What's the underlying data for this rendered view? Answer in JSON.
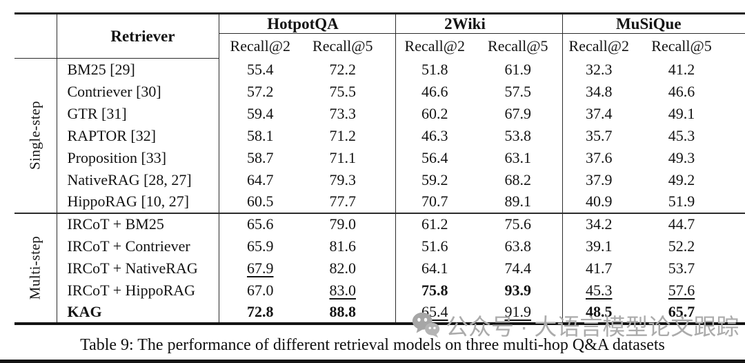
{
  "table": {
    "caption": "Table 9: The performance of different retrieval models on three multi-hop Q&A datasets",
    "header": {
      "retriever": "Retriever",
      "groups": [
        {
          "label": "HotpotQA",
          "sub": [
            "Recall@2",
            "Recall@5"
          ]
        },
        {
          "label": "2Wiki",
          "sub": [
            "Recall@2",
            "Recall@5"
          ]
        },
        {
          "label": "MuSiQue",
          "sub": [
            "Recall@2",
            "Recall@5"
          ]
        }
      ]
    },
    "sections": [
      {
        "label": "Single-step",
        "rows": [
          {
            "retriever": "BM25 [29]",
            "bold": false,
            "values": [
              {
                "v": "55.4",
                "s": "n"
              },
              {
                "v": "72.2",
                "s": "n"
              },
              {
                "v": "51.8",
                "s": "n"
              },
              {
                "v": "61.9",
                "s": "n"
              },
              {
                "v": "32.3",
                "s": "n"
              },
              {
                "v": "41.2",
                "s": "n"
              }
            ]
          },
          {
            "retriever": "Contriever [30]",
            "bold": false,
            "values": [
              {
                "v": "57.2",
                "s": "n"
              },
              {
                "v": "75.5",
                "s": "n"
              },
              {
                "v": "46.6",
                "s": "n"
              },
              {
                "v": "57.5",
                "s": "n"
              },
              {
                "v": "34.8",
                "s": "n"
              },
              {
                "v": "46.6",
                "s": "n"
              }
            ]
          },
          {
            "retriever": "GTR [31]",
            "bold": false,
            "values": [
              {
                "v": "59.4",
                "s": "n"
              },
              {
                "v": "73.3",
                "s": "n"
              },
              {
                "v": "60.2",
                "s": "n"
              },
              {
                "v": "67.9",
                "s": "n"
              },
              {
                "v": "37.4",
                "s": "n"
              },
              {
                "v": "49.1",
                "s": "n"
              }
            ]
          },
          {
            "retriever": "RAPTOR [32]",
            "bold": false,
            "values": [
              {
                "v": "58.1",
                "s": "n"
              },
              {
                "v": "71.2",
                "s": "n"
              },
              {
                "v": "46.3",
                "s": "n"
              },
              {
                "v": "53.8",
                "s": "n"
              },
              {
                "v": "35.7",
                "s": "n"
              },
              {
                "v": "45.3",
                "s": "n"
              }
            ]
          },
          {
            "retriever": "Proposition [33]",
            "bold": false,
            "values": [
              {
                "v": "58.7",
                "s": "n"
              },
              {
                "v": "71.1",
                "s": "n"
              },
              {
                "v": "56.4",
                "s": "n"
              },
              {
                "v": "63.1",
                "s": "n"
              },
              {
                "v": "37.6",
                "s": "n"
              },
              {
                "v": "49.3",
                "s": "n"
              }
            ]
          },
          {
            "retriever": "NativeRAG [28, 27]",
            "bold": false,
            "values": [
              {
                "v": "64.7",
                "s": "n"
              },
              {
                "v": "79.3",
                "s": "n"
              },
              {
                "v": "59.2",
                "s": "n"
              },
              {
                "v": "68.2",
                "s": "n"
              },
              {
                "v": "37.9",
                "s": "n"
              },
              {
                "v": "49.2",
                "s": "n"
              }
            ]
          },
          {
            "retriever": "HippoRAG [10, 27]",
            "bold": false,
            "values": [
              {
                "v": "60.5",
                "s": "n"
              },
              {
                "v": "77.7",
                "s": "n"
              },
              {
                "v": "70.7",
                "s": "n"
              },
              {
                "v": "89.1",
                "s": "n"
              },
              {
                "v": "40.9",
                "s": "n"
              },
              {
                "v": "51.9",
                "s": "n"
              }
            ]
          }
        ]
      },
      {
        "label": "Multi-step",
        "rows": [
          {
            "retriever": "IRCoT + BM25",
            "bold": false,
            "values": [
              {
                "v": "65.6",
                "s": "n"
              },
              {
                "v": "79.0",
                "s": "n"
              },
              {
                "v": "61.2",
                "s": "n"
              },
              {
                "v": "75.6",
                "s": "n"
              },
              {
                "v": "34.2",
                "s": "n"
              },
              {
                "v": "44.7",
                "s": "n"
              }
            ]
          },
          {
            "retriever": "IRCoT + Contriever",
            "bold": false,
            "values": [
              {
                "v": "65.9",
                "s": "n"
              },
              {
                "v": "81.6",
                "s": "n"
              },
              {
                "v": "51.6",
                "s": "n"
              },
              {
                "v": "63.8",
                "s": "n"
              },
              {
                "v": "39.1",
                "s": "n"
              },
              {
                "v": "52.2",
                "s": "n"
              }
            ]
          },
          {
            "retriever": "IRCoT + NativeRAG",
            "bold": false,
            "values": [
              {
                "v": "67.9",
                "s": "u"
              },
              {
                "v": "82.0",
                "s": "n"
              },
              {
                "v": "64.1",
                "s": "n"
              },
              {
                "v": "74.4",
                "s": "n"
              },
              {
                "v": "41.7",
                "s": "n"
              },
              {
                "v": "53.7",
                "s": "n"
              }
            ]
          },
          {
            "retriever": "IRCoT + HippoRAG",
            "bold": false,
            "values": [
              {
                "v": "67.0",
                "s": "n"
              },
              {
                "v": "83.0",
                "s": "u"
              },
              {
                "v": "75.8",
                "s": "b"
              },
              {
                "v": "93.9",
                "s": "b"
              },
              {
                "v": "45.3",
                "s": "u"
              },
              {
                "v": "57.6",
                "s": "u"
              }
            ]
          },
          {
            "retriever": "KAG",
            "bold": true,
            "values": [
              {
                "v": "72.8",
                "s": "b"
              },
              {
                "v": "88.8",
                "s": "b"
              },
              {
                "v": "65.4",
                "s": "u"
              },
              {
                "v": "91.9",
                "s": "u"
              },
              {
                "v": "48.5",
                "s": "b"
              },
              {
                "v": "65.7",
                "s": "b"
              }
            ]
          }
        ]
      }
    ]
  },
  "watermark": {
    "text": "公众号 · 大语言模型论文跟踪",
    "icon": "wechat-icon",
    "color": "#ababab"
  }
}
